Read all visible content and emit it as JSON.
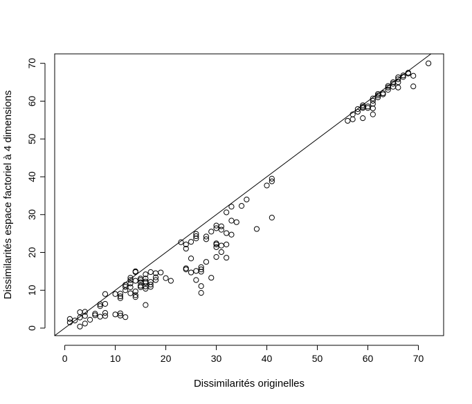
{
  "chart_data": {
    "type": "scatter",
    "xlabel": "Dissimilarités originelles",
    "ylabel": "Dissimilarités espace factoriel à 4 dimensions",
    "xlim": [
      -2,
      75
    ],
    "ylim": [
      -2,
      72.5
    ],
    "xticks": [
      0,
      10,
      20,
      30,
      40,
      50,
      60,
      70
    ],
    "yticks": [
      0,
      10,
      20,
      30,
      40,
      50,
      60,
      70
    ],
    "grid": false,
    "marker": "open-circle",
    "reference_line": {
      "slope": 1,
      "intercept": 0
    },
    "colors": {
      "points": "#000000",
      "line": "#000000",
      "axes": "#000000"
    },
    "series": [
      {
        "points": [
          [
            1,
            1.5
          ],
          [
            1,
            2.4
          ],
          [
            2,
            2
          ],
          [
            3,
            0.4
          ],
          [
            3,
            2.8
          ],
          [
            3,
            4.2
          ],
          [
            4,
            1.2
          ],
          [
            4,
            3.2
          ],
          [
            4,
            4.3
          ],
          [
            5,
            2.2
          ],
          [
            6,
            3.4
          ],
          [
            6,
            3.8
          ],
          [
            7,
            3
          ],
          [
            7,
            5.8
          ],
          [
            7,
            6.3
          ],
          [
            8,
            3.2
          ],
          [
            8,
            4
          ],
          [
            8,
            6.4
          ],
          [
            8,
            9
          ],
          [
            10,
            3.6
          ],
          [
            10,
            9
          ],
          [
            11,
            3.3
          ],
          [
            11,
            3.9
          ],
          [
            11,
            7.9
          ],
          [
            11,
            8.4
          ],
          [
            11,
            9.1
          ],
          [
            12,
            2.9
          ],
          [
            12,
            10
          ],
          [
            12,
            10.9
          ],
          [
            12,
            11.4
          ],
          [
            13,
            9.2
          ],
          [
            13,
            10.8
          ],
          [
            13,
            11.8
          ],
          [
            13,
            12.7
          ],
          [
            13,
            13.3
          ],
          [
            14,
            8.2
          ],
          [
            14,
            8.7
          ],
          [
            14,
            9.7
          ],
          [
            14,
            12.5
          ],
          [
            14,
            14.8
          ],
          [
            14,
            15
          ],
          [
            15,
            10.8
          ],
          [
            15,
            11.2
          ],
          [
            15,
            12.1
          ],
          [
            15,
            12.7
          ],
          [
            15,
            13.1
          ],
          [
            16,
            6.1
          ],
          [
            16,
            10.4
          ],
          [
            16,
            11
          ],
          [
            16,
            11.9
          ],
          [
            16,
            12.3
          ],
          [
            16,
            13.1
          ],
          [
            16,
            14.2
          ],
          [
            17,
            10.9
          ],
          [
            17,
            11.5
          ],
          [
            17,
            12.2
          ],
          [
            17,
            14.8
          ],
          [
            18,
            12.7
          ],
          [
            18,
            13.4
          ],
          [
            18,
            14.5
          ],
          [
            19,
            14.7
          ],
          [
            20,
            13.2
          ],
          [
            21,
            12.5
          ],
          [
            23,
            22.7
          ],
          [
            24,
            15.5
          ],
          [
            24,
            15.8
          ],
          [
            24,
            21
          ],
          [
            24,
            22.1
          ],
          [
            25,
            14.7
          ],
          [
            25,
            18.4
          ],
          [
            25,
            22.8
          ],
          [
            26,
            12.7
          ],
          [
            26,
            15.1
          ],
          [
            26,
            23.7
          ],
          [
            26,
            24.3
          ],
          [
            26,
            24.9
          ],
          [
            27,
            9.3
          ],
          [
            27,
            11.1
          ],
          [
            27,
            14.9
          ],
          [
            27,
            15.5
          ],
          [
            27,
            16.1
          ],
          [
            28,
            17.5
          ],
          [
            28,
            23.5
          ],
          [
            28,
            24.2
          ],
          [
            29,
            13.3
          ],
          [
            29,
            25.5
          ],
          [
            30,
            18.8
          ],
          [
            30,
            21.4
          ],
          [
            30,
            22.1
          ],
          [
            30,
            22.4
          ],
          [
            30,
            26.4
          ],
          [
            30,
            27.1
          ],
          [
            31,
            20.1
          ],
          [
            31,
            21.8
          ],
          [
            31,
            26
          ],
          [
            31,
            26.9
          ],
          [
            32,
            18.6
          ],
          [
            32,
            22.1
          ],
          [
            32,
            25.1
          ],
          [
            32,
            30.6
          ],
          [
            33,
            24.7
          ],
          [
            33,
            28.4
          ],
          [
            33,
            32.1
          ],
          [
            34,
            28
          ],
          [
            35,
            32.3
          ],
          [
            36,
            34
          ],
          [
            38,
            26.2
          ],
          [
            40,
            37.7
          ],
          [
            41,
            38.8
          ],
          [
            41,
            39.5
          ],
          [
            41,
            29.2
          ],
          [
            56,
            54.8
          ],
          [
            57,
            55.2
          ],
          [
            57,
            56.5
          ],
          [
            58,
            57.2
          ],
          [
            58,
            57.9
          ],
          [
            59,
            55.5
          ],
          [
            59,
            58.2
          ],
          [
            59,
            58.5
          ],
          [
            59,
            58.9
          ],
          [
            60,
            58.2
          ],
          [
            60,
            58.6
          ],
          [
            61,
            56.5
          ],
          [
            61,
            58.1
          ],
          [
            61,
            59.3
          ],
          [
            61,
            60.1
          ],
          [
            61,
            60.7
          ],
          [
            62,
            61
          ],
          [
            62,
            61.5
          ],
          [
            62,
            61.9
          ],
          [
            63,
            61.8
          ],
          [
            63,
            62.1
          ],
          [
            64,
            63
          ],
          [
            64,
            63.6
          ],
          [
            64,
            64
          ],
          [
            65,
            63.8
          ],
          [
            65,
            64.6
          ],
          [
            65,
            65
          ],
          [
            66,
            63.6
          ],
          [
            66,
            65
          ],
          [
            66,
            65.8
          ],
          [
            66,
            66.3
          ],
          [
            67,
            66.4
          ],
          [
            67,
            66.8
          ],
          [
            68,
            67.3
          ],
          [
            68,
            67.5
          ],
          [
            69,
            63.9
          ],
          [
            69,
            66.7
          ],
          [
            72,
            70
          ]
        ]
      }
    ]
  }
}
